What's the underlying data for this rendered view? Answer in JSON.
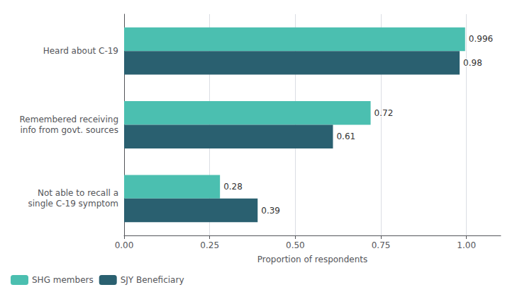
{
  "chart_data": {
    "type": "bar",
    "orientation": "horizontal",
    "categories": [
      "Not able to recall a\nsingle C-19 symptom",
      "Remembered receiving\ninfo from govt. sources",
      "Heard about C-19"
    ],
    "series": [
      {
        "name": "SHG members",
        "color": "#4BBFB0",
        "values": [
          0.28,
          0.72,
          0.996
        ]
      },
      {
        "name": "SJY Beneficiary",
        "color": "#2A6070",
        "values": [
          0.39,
          0.61,
          0.98
        ]
      }
    ],
    "xlabel": "Proportion of respondents",
    "xlim": [
      0,
      1.1
    ],
    "xticks": [
      {
        "value": 0,
        "label": "0.00"
      },
      {
        "value": 0.25,
        "label": "0.25"
      },
      {
        "value": 0.5,
        "label": "0.50"
      },
      {
        "value": 0.75,
        "label": "0.75"
      },
      {
        "value": 1,
        "label": "1.00"
      }
    ],
    "grid": true,
    "legend": "lower left",
    "data_labels": true
  }
}
